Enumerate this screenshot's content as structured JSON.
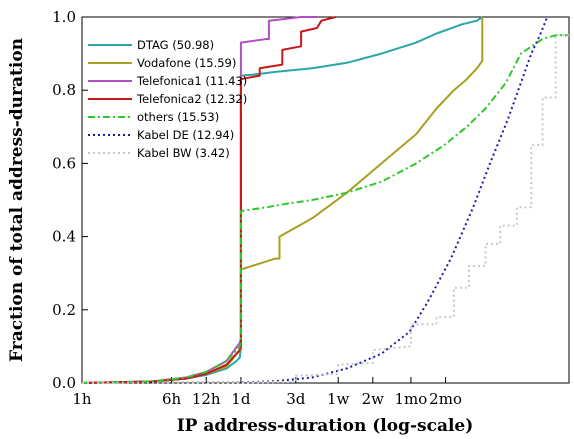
{
  "chart_data": {
    "type": "line",
    "title": "",
    "xlabel": "IP address-duration (log-scale)",
    "ylabel": "Fraction of total address-duration",
    "x_scale": "log",
    "x_unit": "hours",
    "x_ticks": [
      {
        "label": "1h",
        "hours": 1
      },
      {
        "label": "6h",
        "hours": 6
      },
      {
        "label": "12h",
        "hours": 12
      },
      {
        "label": "1d",
        "hours": 24
      },
      {
        "label": "3d",
        "hours": 72
      },
      {
        "label": "1w",
        "hours": 168
      },
      {
        "label": "2w",
        "hours": 336
      },
      {
        "label": "1mo",
        "hours": 720
      },
      {
        "label": "2mo",
        "hours": 1440
      }
    ],
    "xlim": [
      1,
      17000
    ],
    "ylim": [
      0,
      1
    ],
    "y_ticks": [
      {
        "label": "0.0",
        "value": 0.0
      },
      {
        "label": "0.2",
        "value": 0.2
      },
      {
        "label": "0.4",
        "value": 0.4
      },
      {
        "label": "0.6",
        "value": 0.6
      },
      {
        "label": "0.8",
        "value": 0.8
      },
      {
        "label": "1.0",
        "value": 1.0
      }
    ],
    "grid": false,
    "legend_position": "top-left",
    "series": [
      {
        "name": "DTAG (50.98)",
        "color": "#2aa6a6",
        "dash": "solid",
        "x": [
          1,
          4,
          8,
          12,
          18,
          22,
          23.5,
          24,
          24,
          30,
          48,
          100,
          200,
          400,
          800,
          1200,
          2000,
          2700,
          3000
        ],
        "y": [
          0,
          0.004,
          0.012,
          0.022,
          0.04,
          0.06,
          0.07,
          0.1,
          0.84,
          0.842,
          0.85,
          0.86,
          0.875,
          0.9,
          0.93,
          0.955,
          0.98,
          0.99,
          1.0
        ]
      },
      {
        "name": "Vodafone (15.59)",
        "color": "#a8a020",
        "dash": "solid",
        "x": [
          1,
          4,
          8,
          12,
          18,
          23.5,
          24,
          24,
          30,
          48,
          52,
          52,
          100,
          200,
          400,
          800,
          1200,
          1700,
          2200,
          2700,
          3000,
          3000
        ],
        "y": [
          0,
          0.004,
          0.012,
          0.025,
          0.045,
          0.09,
          0.1,
          0.31,
          0.32,
          0.34,
          0.34,
          0.4,
          0.45,
          0.52,
          0.6,
          0.68,
          0.75,
          0.8,
          0.83,
          0.86,
          0.88,
          1.0
        ]
      },
      {
        "name": "Telefonica1 (11.43)",
        "color": "#b050c0",
        "dash": "solid",
        "x": [
          1,
          4,
          8,
          12,
          18,
          23.5,
          24,
          24,
          40,
          42,
          42,
          60,
          80,
          110
        ],
        "y": [
          0,
          0.004,
          0.015,
          0.03,
          0.06,
          0.11,
          0.12,
          0.93,
          0.94,
          0.94,
          0.99,
          0.995,
          1.0,
          1.0
        ]
      },
      {
        "name": "Telefonica2 (12.32)",
        "color": "#c81818",
        "dash": "solid",
        "x": [
          1,
          4,
          8,
          12,
          18,
          23.5,
          24,
          24,
          35,
          35,
          55,
          55,
          80,
          80,
          110,
          120,
          160
        ],
        "y": [
          0,
          0.004,
          0.012,
          0.025,
          0.05,
          0.09,
          0.1,
          0.83,
          0.84,
          0.86,
          0.87,
          0.91,
          0.92,
          0.96,
          0.97,
          0.99,
          1.0
        ]
      },
      {
        "name": "others (15.53)",
        "color": "#2ec828",
        "dash": "dashdot",
        "x": [
          1,
          4,
          8,
          12,
          18,
          23.5,
          24,
          24,
          40,
          60,
          100,
          200,
          400,
          800,
          1400,
          2200,
          3200,
          4800,
          6500,
          10000,
          13000,
          17000
        ],
        "y": [
          0,
          0.004,
          0.015,
          0.03,
          0.06,
          0.1,
          0.12,
          0.47,
          0.48,
          0.49,
          0.5,
          0.52,
          0.55,
          0.6,
          0.65,
          0.7,
          0.75,
          0.82,
          0.9,
          0.94,
          0.95,
          0.95
        ]
      },
      {
        "name": "Kabel DE (12.94)",
        "color": "#1c1ca8",
        "dash": "dotted",
        "x": [
          1,
          24,
          48,
          100,
          200,
          400,
          700,
          1000,
          1600,
          2500,
          3500,
          5000,
          6500,
          8000,
          9500,
          11000
        ],
        "y": [
          0,
          0.002,
          0.005,
          0.015,
          0.04,
          0.08,
          0.14,
          0.22,
          0.34,
          0.48,
          0.6,
          0.72,
          0.82,
          0.9,
          0.95,
          1.0
        ]
      },
      {
        "name": "Kabel BW (3.42)",
        "color": "#c8c8c8",
        "dash": "dotted",
        "x": [
          1,
          24,
          72,
          72,
          168,
          168,
          336,
          336,
          720,
          720,
          1200,
          1200,
          1700,
          1700,
          2300,
          2300,
          3200,
          3200,
          4300,
          4300,
          6000,
          6000,
          8000,
          8000,
          10000,
          10000,
          13000,
          13000,
          17000
        ],
        "y": [
          0,
          0.001,
          0.003,
          0.02,
          0.025,
          0.05,
          0.055,
          0.09,
          0.1,
          0.16,
          0.16,
          0.18,
          0.18,
          0.26,
          0.26,
          0.32,
          0.32,
          0.38,
          0.38,
          0.43,
          0.43,
          0.48,
          0.48,
          0.65,
          0.65,
          0.78,
          0.78,
          0.95,
          0.95
        ]
      }
    ]
  }
}
